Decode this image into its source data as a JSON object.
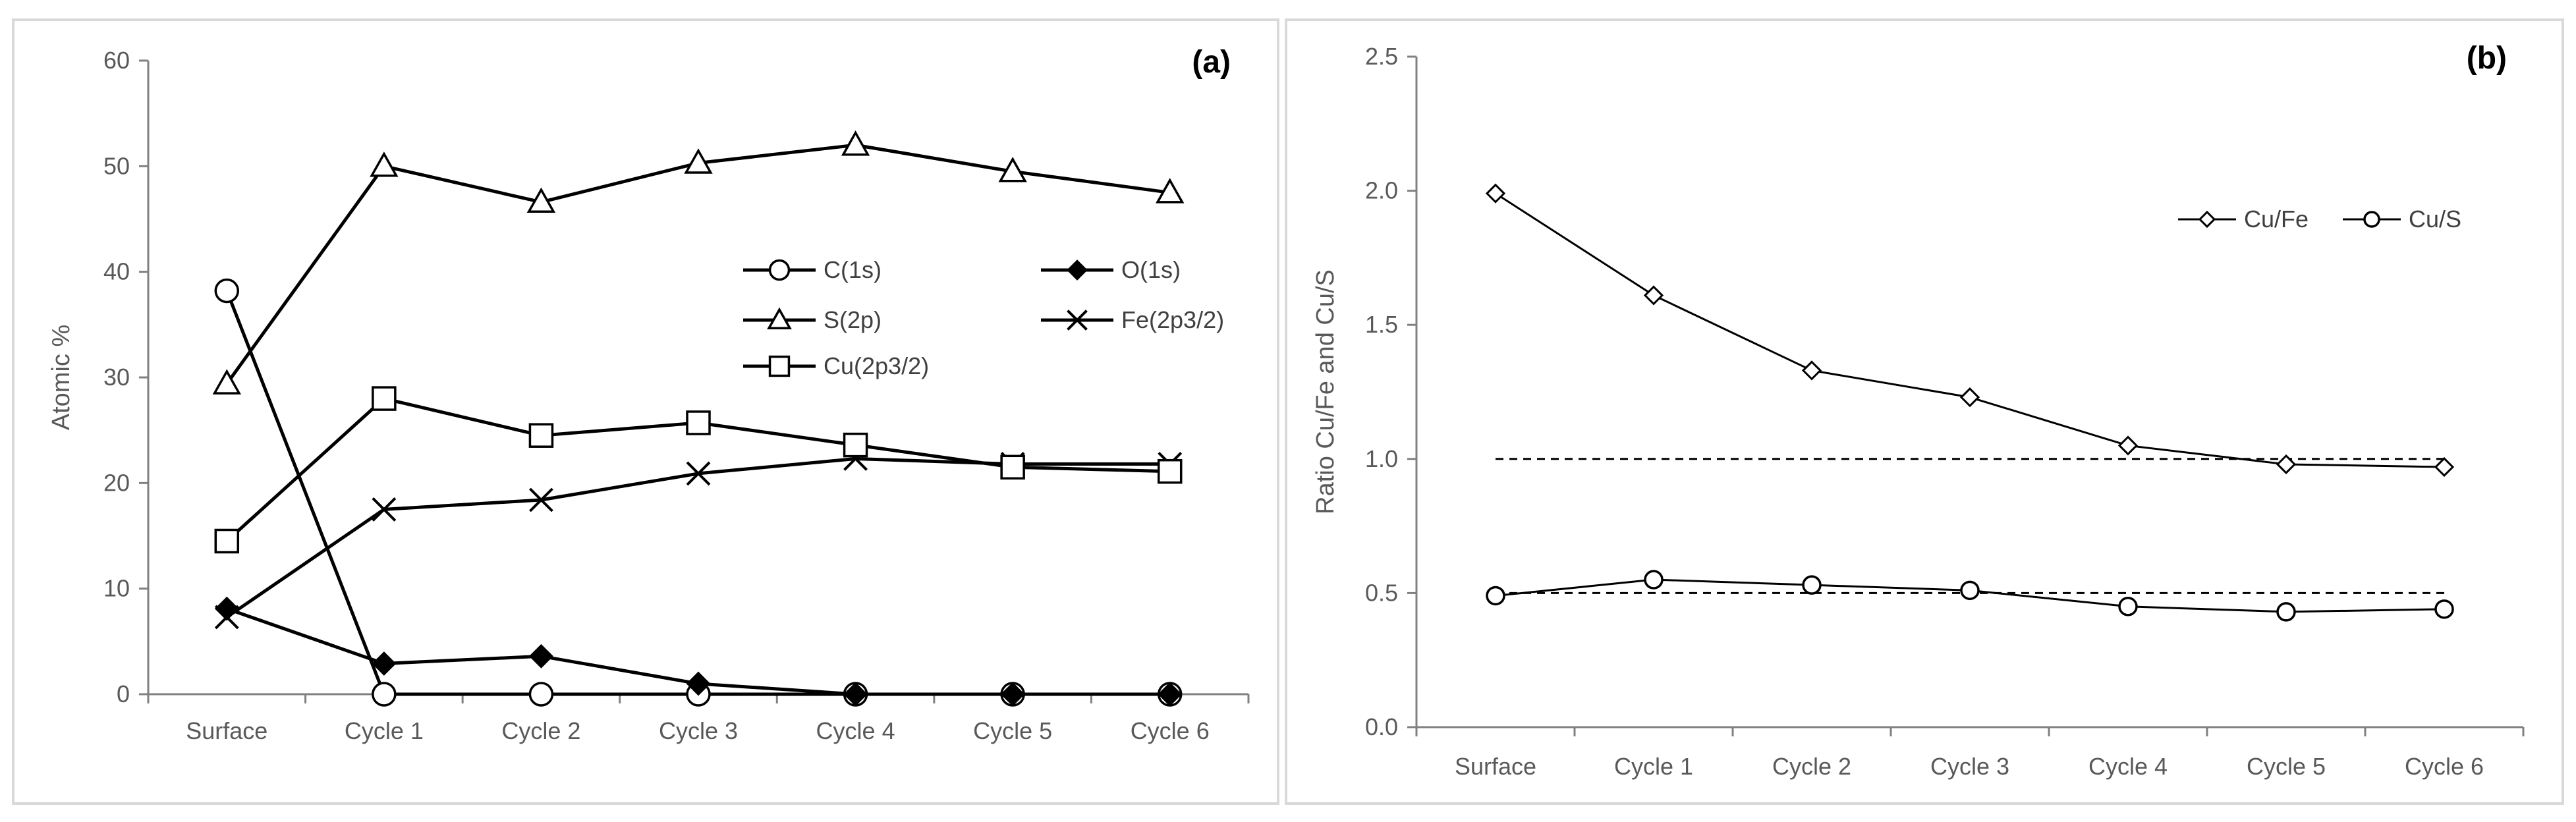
{
  "chart_data": [
    {
      "type": "line",
      "panel_label": "(a)",
      "ylabel": "Atomic %",
      "xlabel": "",
      "ylim": [
        0,
        60
      ],
      "yticks": [
        "0",
        "10",
        "20",
        "30",
        "40",
        "50",
        "60"
      ],
      "categories": [
        "Surface",
        "Cycle 1",
        "Cycle 2",
        "Cycle 3",
        "Cycle 4",
        "Cycle 5",
        "Cycle 6"
      ],
      "legend_position": "center-right",
      "series": [
        {
          "name": "C(1s)",
          "marker": "circle-open",
          "values": [
            38.2,
            0,
            0,
            0,
            0,
            0,
            0
          ]
        },
        {
          "name": "O(1s)",
          "marker": "diamond-filled",
          "values": [
            8.1,
            2.9,
            3.6,
            1.0,
            0,
            0,
            0
          ]
        },
        {
          "name": "S(2p)",
          "marker": "triangle-open",
          "values": [
            29.4,
            50.0,
            46.6,
            50.3,
            52.0,
            49.5,
            47.5
          ]
        },
        {
          "name": "Fe(2p3/2)",
          "marker": "x",
          "values": [
            7.3,
            17.5,
            18.4,
            20.9,
            22.3,
            21.8,
            21.8
          ]
        },
        {
          "name": "Cu(2p3/2)",
          "marker": "square-open",
          "values": [
            14.5,
            28.0,
            24.5,
            25.7,
            23.6,
            21.5,
            21.1
          ]
        }
      ]
    },
    {
      "type": "line",
      "panel_label": "(b)",
      "ylabel": "Ratio Cu/Fe and Cu/S",
      "xlabel": "",
      "ylim": [
        0,
        2.5
      ],
      "yticks": [
        "0.0",
        "0.5",
        "1.0",
        "1.5",
        "2.0",
        "2.5"
      ],
      "categories": [
        "Surface",
        "Cycle 1",
        "Cycle 2",
        "Cycle 3",
        "Cycle 4",
        "Cycle 5",
        "Cycle 6"
      ],
      "legend_position": "top-right",
      "series": [
        {
          "name": "Cu/Fe",
          "marker": "diamond-open",
          "values": [
            1.99,
            1.61,
            1.33,
            1.23,
            1.05,
            0.98,
            0.97
          ]
        },
        {
          "name": "Cu/S",
          "marker": "circle-open",
          "values": [
            0.49,
            0.55,
            0.53,
            0.51,
            0.45,
            0.43,
            0.44
          ]
        }
      ],
      "reference_lines": [
        1.0,
        0.5
      ]
    }
  ]
}
